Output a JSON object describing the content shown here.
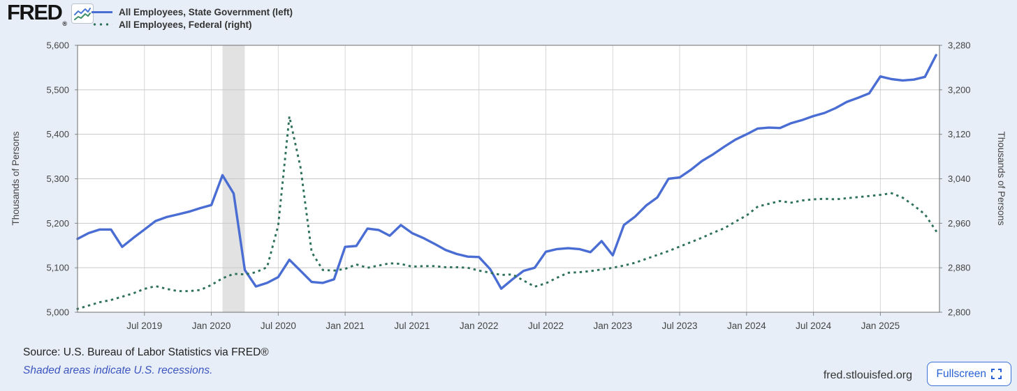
{
  "header": {
    "logo_text": "FRED",
    "registered_mark": "®",
    "chart_icon": "line-chart-icon"
  },
  "legend": [
    {
      "label": "All Employees, State Government (left)",
      "color": "#4a6dd3",
      "style": "solid"
    },
    {
      "label": "All Employees, Federal (right)",
      "color": "#2e7159",
      "style": "dotted"
    }
  ],
  "footer": {
    "source_text": "Source: U.S. Bureau of Labor Statistics via FRED®",
    "recession_note": "Shaded areas indicate U.S. recessions.",
    "site_url": "fred.stlouisfed.org",
    "fullscreen_label": "Fullscreen"
  },
  "chart_data": {
    "type": "line",
    "frequency": "monthly",
    "x_start": "2019-01",
    "x_end": "2025-06",
    "x_tick_labels": [
      "Jul 2019",
      "Jan 2020",
      "Jul 2020",
      "Jan 2021",
      "Jul 2021",
      "Jan 2022",
      "Jul 2022",
      "Jan 2023",
      "Jul 2023",
      "Jan 2024",
      "Jul 2024",
      "Jan 2025"
    ],
    "grid": true,
    "legend_position": "top-left",
    "y_left": {
      "title": "Thousands of Persons",
      "min": 5000,
      "max": 5600,
      "tick_labels": [
        "5,000",
        "5,100",
        "5,200",
        "5,300",
        "5,400",
        "5,500",
        "5,600"
      ]
    },
    "y_right": {
      "title": "Thousands of Persons",
      "min": 2800,
      "max": 3280,
      "tick_labels": [
        "2,800",
        "2,880",
        "2,960",
        "3,040",
        "3,120",
        "3,200",
        "3,280"
      ]
    },
    "recession_band": {
      "from": "2020-02",
      "to": "2020-04",
      "color": "#e2e2e2"
    },
    "series": [
      {
        "name": "All Employees, State Government",
        "axis": "left",
        "color": "#4a6dd3",
        "style": "solid",
        "values": [
          5165,
          5178,
          5186,
          5186,
          5147,
          5167,
          5186,
          5205,
          5214,
          5220,
          5226,
          5234,
          5241,
          5308,
          5267,
          5095,
          5058,
          5066,
          5079,
          5118,
          5093,
          5068,
          5066,
          5074,
          5147,
          5149,
          5188,
          5185,
          5172,
          5196,
          5178,
          5167,
          5154,
          5140,
          5131,
          5125,
          5124,
          5097,
          5053,
          5074,
          5093,
          5100,
          5136,
          5142,
          5144,
          5142,
          5135,
          5160,
          5128,
          5196,
          5215,
          5240,
          5258,
          5300,
          5303,
          5320,
          5340,
          5355,
          5372,
          5388,
          5400,
          5413,
          5415,
          5414,
          5425,
          5432,
          5441,
          5448,
          5459,
          5473,
          5482,
          5492,
          5530,
          5524,
          5521,
          5523,
          5529,
          5578
        ]
      },
      {
        "name": "All Employees, Federal",
        "axis": "right",
        "color": "#2e7159",
        "style": "dotted",
        "values": [
          2806,
          2812,
          2818,
          2822,
          2828,
          2834,
          2842,
          2847,
          2842,
          2838,
          2838,
          2840,
          2849,
          2861,
          2869,
          2868,
          2872,
          2881,
          2956,
          3152,
          3060,
          2908,
          2876,
          2875,
          2878,
          2886,
          2880,
          2884,
          2888,
          2887,
          2882,
          2883,
          2883,
          2881,
          2881,
          2880,
          2875,
          2871,
          2867,
          2868,
          2857,
          2846,
          2852,
          2862,
          2871,
          2872,
          2874,
          2877,
          2880,
          2884,
          2889,
          2896,
          2903,
          2910,
          2918,
          2926,
          2934,
          2943,
          2951,
          2963,
          2974,
          2990,
          2995,
          3000,
          2997,
          3001,
          3003,
          3004,
          3003,
          3005,
          3007,
          3009,
          3011,
          3014,
          3006,
          2992,
          2976,
          2946
        ]
      }
    ]
  }
}
